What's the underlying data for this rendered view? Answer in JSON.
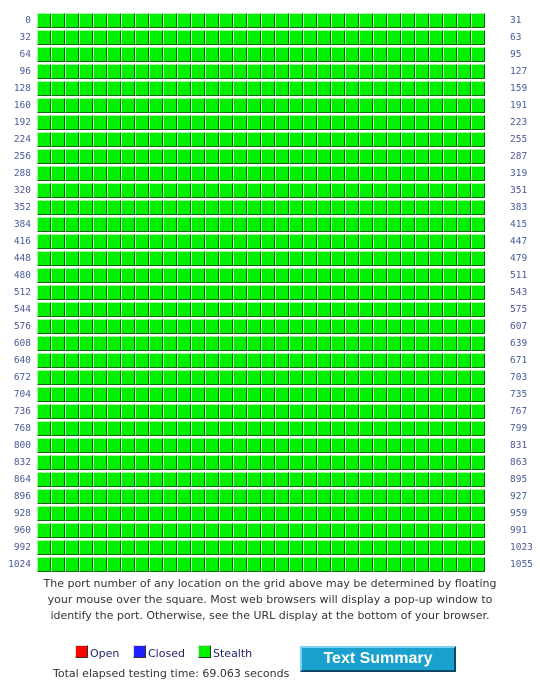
{
  "grid": {
    "start_port": 0,
    "end_port": 1055,
    "ports_per_row": 32,
    "row_count": 33,
    "results": "all stealth",
    "row_start_labels": [
      "0",
      "32",
      "64",
      "96",
      "128",
      "160",
      "192",
      "224",
      "256",
      "288",
      "320",
      "352",
      "384",
      "416",
      "448",
      "480",
      "512",
      "544",
      "576",
      "608",
      "640",
      "672",
      "704",
      "736",
      "768",
      "800",
      "832",
      "864",
      "896",
      "928",
      "960",
      "992",
      "1024"
    ],
    "row_end_labels": [
      "31",
      "63",
      "95",
      "127",
      "159",
      "191",
      "223",
      "255",
      "287",
      "319",
      "351",
      "383",
      "415",
      "447",
      "479",
      "511",
      "543",
      "575",
      "607",
      "639",
      "671",
      "703",
      "735",
      "767",
      "799",
      "831",
      "863",
      "895",
      "927",
      "959",
      "991",
      "1023",
      "1055"
    ],
    "colors": {
      "open": "#ff0000",
      "closed": "#2020ff",
      "stealth": "#00f000",
      "label": "#4a5a9a"
    }
  },
  "explanation": {
    "line1": "The port number of any location on the grid above may be determined by floating",
    "line2": "your mouse over the square. Most web browsers will display a pop-up window to",
    "line3": "identify the port. Otherwise, see the URL display at the bottom of your browser."
  },
  "legend": {
    "open_label": "Open",
    "closed_label": "Closed",
    "stealth_label": "Stealth"
  },
  "elapsed_text": "Total elapsed testing time: 69.063 seconds",
  "summary_button_label": "Text Summary"
}
